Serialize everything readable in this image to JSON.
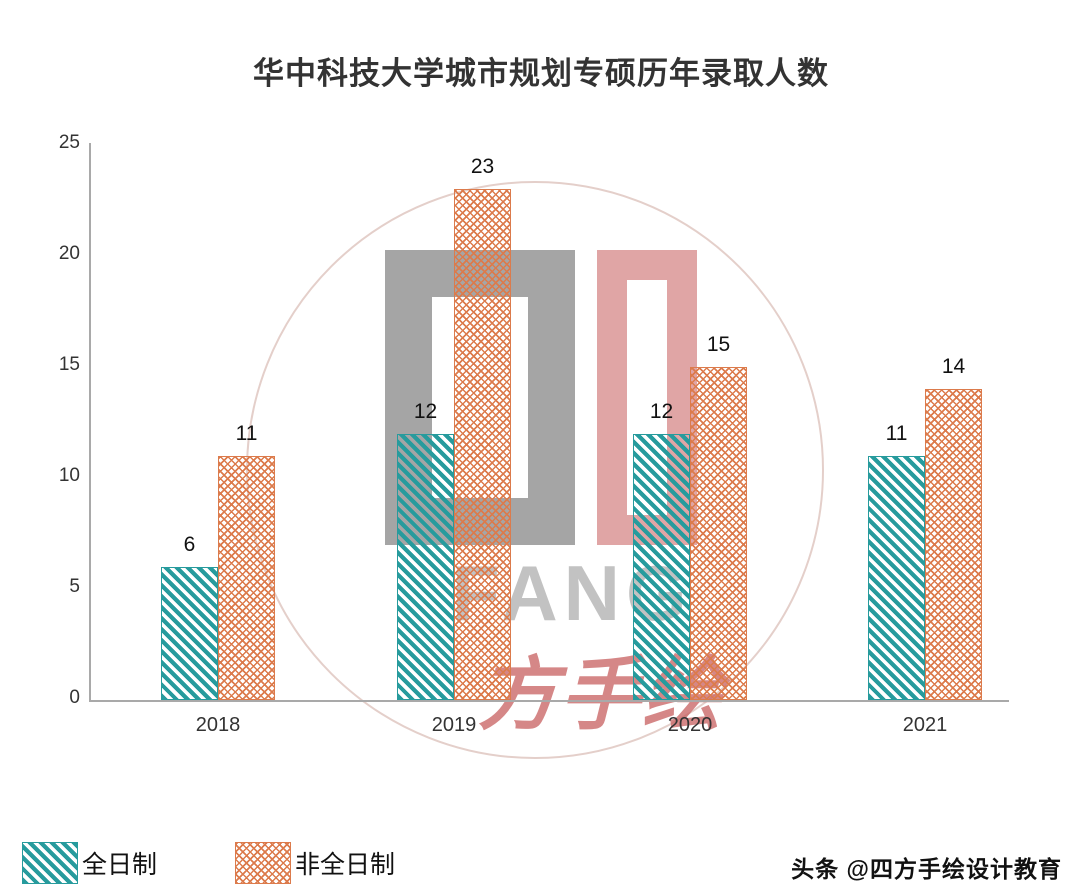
{
  "chart_data": {
    "type": "bar",
    "title": "华中科技大学城市规划专硕历年录取人数",
    "categories": [
      "2018",
      "2019",
      "2020",
      "2021"
    ],
    "series": [
      {
        "name": "全日制",
        "values": [
          6,
          12,
          12,
          11
        ],
        "color": "#279b9d",
        "pattern": "diagonal-hatch"
      },
      {
        "name": "非全日制",
        "values": [
          11,
          23,
          15,
          14
        ],
        "color": "#dc7b4c",
        "pattern": "cross-hatch"
      }
    ],
    "xlabel": "",
    "ylabel": "",
    "ylim": [
      0,
      25
    ],
    "yticks": [
      0,
      5,
      10,
      15,
      20,
      25
    ],
    "grid": false,
    "data_labels": true,
    "legend_position": "bottom-left"
  },
  "footer": {
    "credit": "头条 @四方手绘设计教育"
  },
  "watermark": {
    "monogram_text": "FANG",
    "script_text": "方手绘"
  }
}
